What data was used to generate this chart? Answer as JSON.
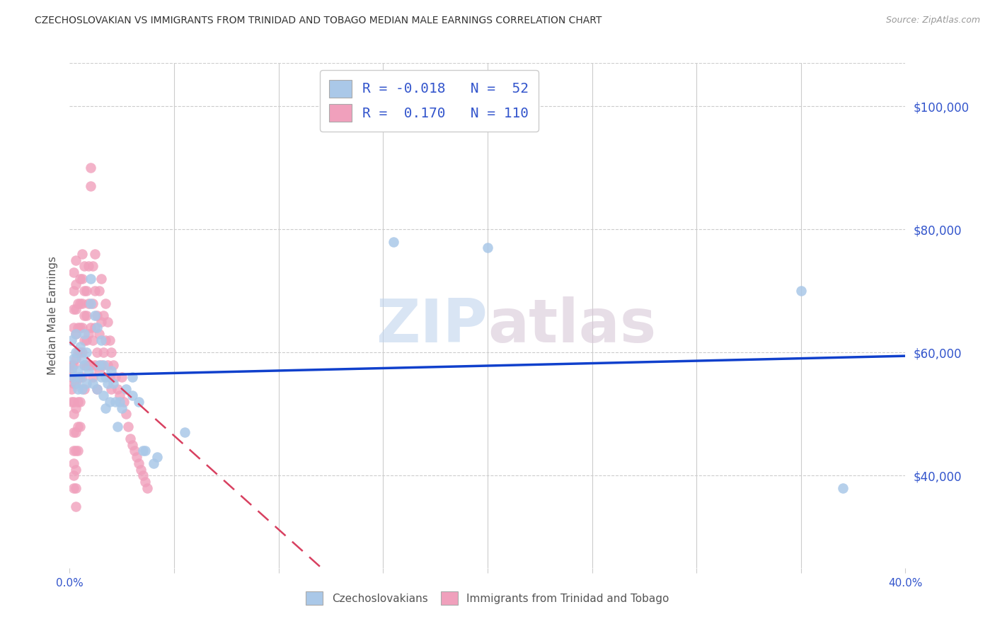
{
  "title": "CZECHOSLOVAKIAN VS IMMIGRANTS FROM TRINIDAD AND TOBAGO MEDIAN MALE EARNINGS CORRELATION CHART",
  "source": "Source: ZipAtlas.com",
  "ylabel": "Median Male Earnings",
  "yticks": [
    40000,
    60000,
    80000,
    100000
  ],
  "ytick_labels": [
    "$40,000",
    "$60,000",
    "$80,000",
    "$100,000"
  ],
  "xmin": 0.0,
  "xmax": 0.4,
  "ymin": 25000,
  "ymax": 107000,
  "legend_blue_r": "-0.018",
  "legend_blue_n": "52",
  "legend_pink_r": "0.170",
  "legend_pink_n": "110",
  "legend_label_blue": "Czechoslovakians",
  "legend_label_pink": "Immigrants from Trinidad and Tobago",
  "blue_color": "#aac8e8",
  "pink_color": "#f0a0bc",
  "blue_line_color": "#1040cc",
  "pink_line_color": "#d84060",
  "watermark_zip": "ZIP",
  "watermark_atlas": "atlas",
  "title_color": "#333333",
  "axis_label_color": "#3355cc",
  "blue_scatter": [
    [
      0.001,
      57500
    ],
    [
      0.001,
      62000
    ],
    [
      0.002,
      56000
    ],
    [
      0.002,
      59000
    ],
    [
      0.003,
      55000
    ],
    [
      0.003,
      60000
    ],
    [
      0.003,
      63000
    ],
    [
      0.004,
      57000
    ],
    [
      0.004,
      54000
    ],
    [
      0.005,
      61000
    ],
    [
      0.005,
      56000
    ],
    [
      0.006,
      59000
    ],
    [
      0.006,
      54000
    ],
    [
      0.007,
      58000
    ],
    [
      0.007,
      63000
    ],
    [
      0.008,
      55000
    ],
    [
      0.008,
      60000
    ],
    [
      0.009,
      57000
    ],
    [
      0.01,
      72000
    ],
    [
      0.01,
      68000
    ],
    [
      0.011,
      55000
    ],
    [
      0.012,
      66000
    ],
    [
      0.013,
      64000
    ],
    [
      0.013,
      54000
    ],
    [
      0.014,
      58000
    ],
    [
      0.015,
      56000
    ],
    [
      0.015,
      62000
    ],
    [
      0.016,
      53000
    ],
    [
      0.016,
      58000
    ],
    [
      0.017,
      56000
    ],
    [
      0.017,
      51000
    ],
    [
      0.018,
      55000
    ],
    [
      0.019,
      52000
    ],
    [
      0.02,
      57000
    ],
    [
      0.021,
      55000
    ],
    [
      0.022,
      52000
    ],
    [
      0.023,
      48000
    ],
    [
      0.024,
      52000
    ],
    [
      0.025,
      51000
    ],
    [
      0.027,
      54000
    ],
    [
      0.03,
      53000
    ],
    [
      0.03,
      56000
    ],
    [
      0.033,
      52000
    ],
    [
      0.035,
      44000
    ],
    [
      0.036,
      44000
    ],
    [
      0.04,
      42000
    ],
    [
      0.042,
      43000
    ],
    [
      0.055,
      47000
    ],
    [
      0.155,
      78000
    ],
    [
      0.2,
      77000
    ],
    [
      0.35,
      70000
    ],
    [
      0.37,
      38000
    ]
  ],
  "pink_scatter": [
    [
      0.001,
      58000
    ],
    [
      0.001,
      57000
    ],
    [
      0.001,
      56000
    ],
    [
      0.001,
      54000
    ],
    [
      0.001,
      52000
    ],
    [
      0.002,
      73000
    ],
    [
      0.002,
      70000
    ],
    [
      0.002,
      67000
    ],
    [
      0.002,
      64000
    ],
    [
      0.002,
      58000
    ],
    [
      0.002,
      55000
    ],
    [
      0.002,
      52000
    ],
    [
      0.002,
      50000
    ],
    [
      0.002,
      47000
    ],
    [
      0.002,
      44000
    ],
    [
      0.002,
      42000
    ],
    [
      0.002,
      40000
    ],
    [
      0.002,
      38000
    ],
    [
      0.003,
      75000
    ],
    [
      0.003,
      71000
    ],
    [
      0.003,
      67000
    ],
    [
      0.003,
      63000
    ],
    [
      0.003,
      59000
    ],
    [
      0.003,
      55000
    ],
    [
      0.003,
      51000
    ],
    [
      0.003,
      47000
    ],
    [
      0.003,
      44000
    ],
    [
      0.003,
      41000
    ],
    [
      0.003,
      38000
    ],
    [
      0.003,
      35000
    ],
    [
      0.004,
      68000
    ],
    [
      0.004,
      64000
    ],
    [
      0.004,
      60000
    ],
    [
      0.004,
      56000
    ],
    [
      0.004,
      52000
    ],
    [
      0.004,
      48000
    ],
    [
      0.004,
      44000
    ],
    [
      0.005,
      72000
    ],
    [
      0.005,
      68000
    ],
    [
      0.005,
      64000
    ],
    [
      0.005,
      60000
    ],
    [
      0.005,
      56000
    ],
    [
      0.005,
      52000
    ],
    [
      0.005,
      48000
    ],
    [
      0.006,
      76000
    ],
    [
      0.006,
      72000
    ],
    [
      0.006,
      68000
    ],
    [
      0.006,
      64000
    ],
    [
      0.006,
      60000
    ],
    [
      0.006,
      56000
    ],
    [
      0.007,
      74000
    ],
    [
      0.007,
      70000
    ],
    [
      0.007,
      66000
    ],
    [
      0.007,
      62000
    ],
    [
      0.007,
      58000
    ],
    [
      0.007,
      54000
    ],
    [
      0.008,
      70000
    ],
    [
      0.008,
      66000
    ],
    [
      0.008,
      62000
    ],
    [
      0.008,
      58000
    ],
    [
      0.009,
      74000
    ],
    [
      0.009,
      68000
    ],
    [
      0.009,
      63000
    ],
    [
      0.009,
      58000
    ],
    [
      0.01,
      90000
    ],
    [
      0.01,
      87000
    ],
    [
      0.01,
      64000
    ],
    [
      0.01,
      58000
    ],
    [
      0.011,
      74000
    ],
    [
      0.011,
      68000
    ],
    [
      0.011,
      62000
    ],
    [
      0.011,
      56000
    ],
    [
      0.012,
      76000
    ],
    [
      0.012,
      70000
    ],
    [
      0.012,
      64000
    ],
    [
      0.012,
      58000
    ],
    [
      0.013,
      66000
    ],
    [
      0.013,
      60000
    ],
    [
      0.013,
      54000
    ],
    [
      0.014,
      70000
    ],
    [
      0.014,
      63000
    ],
    [
      0.014,
      57000
    ],
    [
      0.015,
      72000
    ],
    [
      0.015,
      65000
    ],
    [
      0.015,
      58000
    ],
    [
      0.016,
      66000
    ],
    [
      0.016,
      60000
    ],
    [
      0.017,
      68000
    ],
    [
      0.017,
      62000
    ],
    [
      0.018,
      65000
    ],
    [
      0.018,
      58000
    ],
    [
      0.019,
      62000
    ],
    [
      0.019,
      56000
    ],
    [
      0.02,
      60000
    ],
    [
      0.02,
      54000
    ],
    [
      0.021,
      58000
    ],
    [
      0.022,
      56000
    ],
    [
      0.023,
      54000
    ],
    [
      0.024,
      53000
    ],
    [
      0.025,
      56000
    ],
    [
      0.026,
      52000
    ],
    [
      0.027,
      50000
    ],
    [
      0.028,
      48000
    ],
    [
      0.029,
      46000
    ],
    [
      0.03,
      45000
    ],
    [
      0.031,
      44000
    ],
    [
      0.032,
      43000
    ],
    [
      0.033,
      42000
    ],
    [
      0.034,
      41000
    ],
    [
      0.035,
      40000
    ],
    [
      0.036,
      39000
    ],
    [
      0.037,
      38000
    ]
  ]
}
